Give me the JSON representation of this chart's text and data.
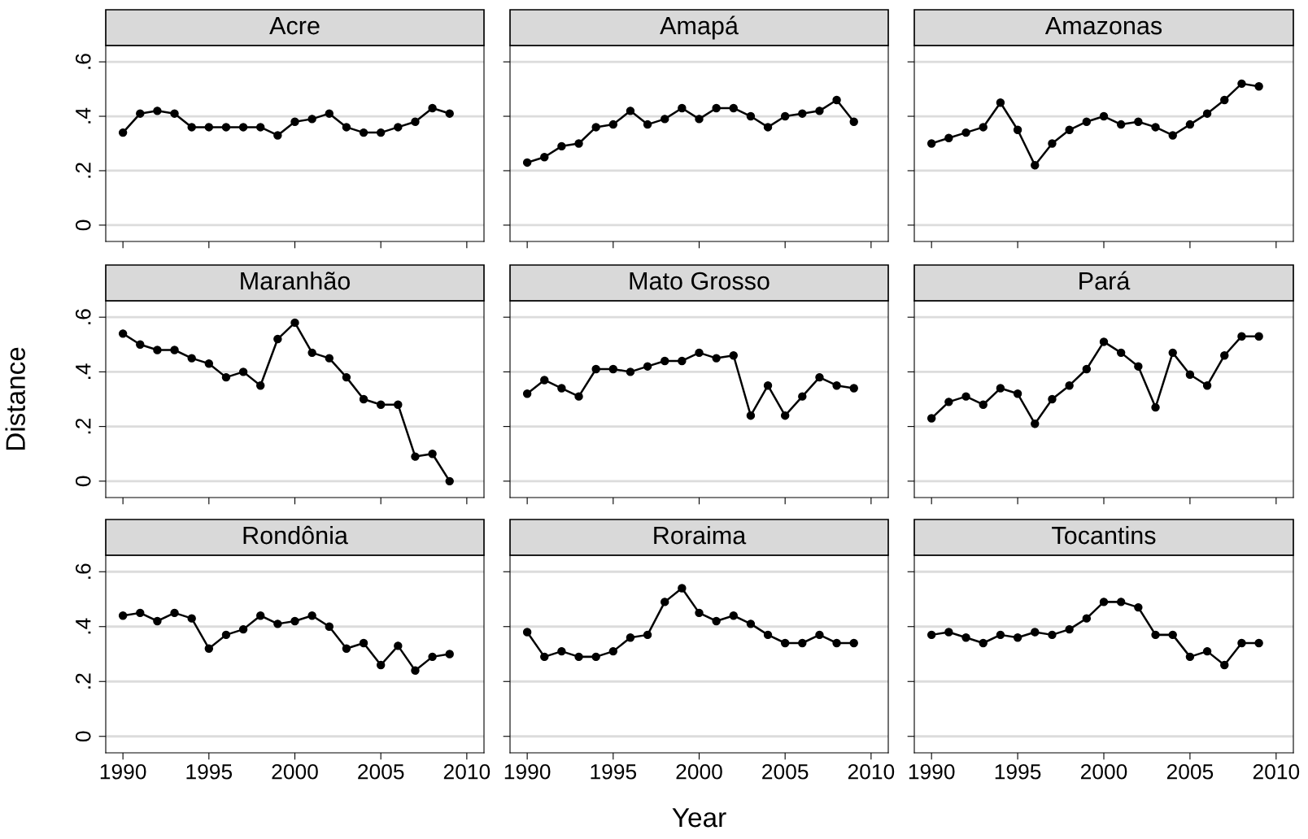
{
  "chart_data": [
    {
      "type": "line",
      "title": "Acre",
      "x": [
        1990,
        1991,
        1992,
        1993,
        1994,
        1995,
        1996,
        1997,
        1998,
        1999,
        2000,
        2001,
        2002,
        2003,
        2004,
        2005,
        2006,
        2007,
        2008,
        2009
      ],
      "values": [
        0.34,
        0.41,
        0.42,
        0.41,
        0.36,
        0.36,
        0.36,
        0.36,
        0.36,
        0.33,
        0.38,
        0.39,
        0.41,
        0.36,
        0.34,
        0.34,
        0.36,
        0.38,
        0.43,
        0.41
      ],
      "color": "#000000",
      "marker": "circle",
      "xlim": [
        1989,
        2011
      ],
      "ylim": [
        -0.06,
        0.66
      ],
      "xticks": [
        {
          "value": 1990,
          "label": null
        },
        {
          "value": 1995,
          "label": null
        },
        {
          "value": 2000,
          "label": null
        },
        {
          "value": 2005,
          "label": null
        },
        {
          "value": 2010,
          "label": null
        }
      ],
      "yticks": [
        {
          "value": 0,
          "label": "0"
        },
        {
          "value": 0.2,
          "label": ".2"
        },
        {
          "value": 0.4,
          "label": ".4"
        },
        {
          "value": 0.6,
          "label": ".6"
        }
      ],
      "grid": "y",
      "tick_labels": "y"
    },
    {
      "type": "line",
      "title": "Amapá",
      "x": [
        1990,
        1991,
        1992,
        1993,
        1994,
        1995,
        1996,
        1997,
        1998,
        1999,
        2000,
        2001,
        2002,
        2003,
        2004,
        2005,
        2006,
        2007,
        2008,
        2009
      ],
      "values": [
        0.23,
        0.25,
        0.29,
        0.3,
        0.36,
        0.37,
        0.42,
        0.37,
        0.39,
        0.43,
        0.39,
        0.43,
        0.43,
        0.4,
        0.36,
        0.4,
        0.41,
        0.42,
        0.46,
        0.38
      ],
      "color": "#000000",
      "marker": "circle",
      "xlim": [
        1989,
        2011
      ],
      "ylim": [
        -0.06,
        0.66
      ],
      "xticks": [
        {
          "value": 1990,
          "label": null
        },
        {
          "value": 1995,
          "label": null
        },
        {
          "value": 2000,
          "label": null
        },
        {
          "value": 2005,
          "label": null
        },
        {
          "value": 2010,
          "label": null
        }
      ],
      "yticks": [
        {
          "value": 0,
          "label": null
        },
        {
          "value": 0.2,
          "label": null
        },
        {
          "value": 0.4,
          "label": null
        },
        {
          "value": 0.6,
          "label": null
        }
      ],
      "grid": "y",
      "tick_labels": false
    },
    {
      "type": "line",
      "title": "Amazonas",
      "x": [
        1990,
        1991,
        1992,
        1993,
        1994,
        1995,
        1996,
        1997,
        1998,
        1999,
        2000,
        2001,
        2002,
        2003,
        2004,
        2005,
        2006,
        2007,
        2008,
        2009
      ],
      "values": [
        0.3,
        0.32,
        0.34,
        0.36,
        0.45,
        0.35,
        0.22,
        0.3,
        0.35,
        0.38,
        0.4,
        0.37,
        0.38,
        0.36,
        0.33,
        0.37,
        0.41,
        0.46,
        0.52,
        0.51
      ],
      "color": "#000000",
      "marker": "circle",
      "xlim": [
        1989,
        2011
      ],
      "ylim": [
        -0.06,
        0.66
      ],
      "xticks": [
        {
          "value": 1990,
          "label": null
        },
        {
          "value": 1995,
          "label": null
        },
        {
          "value": 2000,
          "label": null
        },
        {
          "value": 2005,
          "label": null
        },
        {
          "value": 2010,
          "label": null
        }
      ],
      "yticks": [
        {
          "value": 0,
          "label": null
        },
        {
          "value": 0.2,
          "label": null
        },
        {
          "value": 0.4,
          "label": null
        },
        {
          "value": 0.6,
          "label": null
        }
      ],
      "grid": "y",
      "tick_labels": false
    },
    {
      "type": "line",
      "title": "Maranhão",
      "ylabel": "Distance",
      "x": [
        1990,
        1991,
        1992,
        1993,
        1994,
        1995,
        1996,
        1997,
        1998,
        1999,
        2000,
        2001,
        2002,
        2003,
        2004,
        2005,
        2006,
        2007,
        2008,
        2009
      ],
      "values": [
        0.54,
        0.5,
        0.48,
        0.48,
        0.45,
        0.43,
        0.38,
        0.4,
        0.35,
        0.52,
        0.58,
        0.47,
        0.45,
        0.38,
        0.3,
        0.28,
        0.28,
        0.09,
        0.1,
        0.0
      ],
      "color": "#000000",
      "marker": "circle",
      "xlim": [
        1989,
        2011
      ],
      "ylim": [
        -0.06,
        0.66
      ],
      "xticks": [
        {
          "value": 1990,
          "label": null
        },
        {
          "value": 1995,
          "label": null
        },
        {
          "value": 2000,
          "label": null
        },
        {
          "value": 2005,
          "label": null
        },
        {
          "value": 2010,
          "label": null
        }
      ],
      "yticks": [
        {
          "value": 0,
          "label": "0"
        },
        {
          "value": 0.2,
          "label": ".2"
        },
        {
          "value": 0.4,
          "label": ".4"
        },
        {
          "value": 0.6,
          "label": ".6"
        }
      ],
      "grid": "y",
      "tick_labels": "y"
    },
    {
      "type": "line",
      "title": "Mato Grosso",
      "x": [
        1990,
        1991,
        1992,
        1993,
        1994,
        1995,
        1996,
        1997,
        1998,
        1999,
        2000,
        2001,
        2002,
        2003,
        2004,
        2005,
        2006,
        2007,
        2008,
        2009
      ],
      "values": [
        0.32,
        0.37,
        0.34,
        0.31,
        0.41,
        0.41,
        0.4,
        0.42,
        0.44,
        0.44,
        0.47,
        0.45,
        0.46,
        0.24,
        0.35,
        0.24,
        0.31,
        0.38,
        0.35,
        0.34
      ],
      "color": "#000000",
      "marker": "circle",
      "xlim": [
        1989,
        2011
      ],
      "ylim": [
        -0.06,
        0.66
      ],
      "xticks": [
        {
          "value": 1990,
          "label": null
        },
        {
          "value": 1995,
          "label": null
        },
        {
          "value": 2000,
          "label": null
        },
        {
          "value": 2005,
          "label": null
        },
        {
          "value": 2010,
          "label": null
        }
      ],
      "yticks": [
        {
          "value": 0,
          "label": null
        },
        {
          "value": 0.2,
          "label": null
        },
        {
          "value": 0.4,
          "label": null
        },
        {
          "value": 0.6,
          "label": null
        }
      ],
      "grid": "y",
      "tick_labels": false
    },
    {
      "type": "line",
      "title": "Pará",
      "x": [
        1990,
        1991,
        1992,
        1993,
        1994,
        1995,
        1996,
        1997,
        1998,
        1999,
        2000,
        2001,
        2002,
        2003,
        2004,
        2005,
        2006,
        2007,
        2008,
        2009
      ],
      "values": [
        0.23,
        0.29,
        0.31,
        0.28,
        0.34,
        0.32,
        0.21,
        0.3,
        0.35,
        0.41,
        0.51,
        0.47,
        0.42,
        0.27,
        0.47,
        0.39,
        0.35,
        0.46,
        0.53,
        0.53
      ],
      "color": "#000000",
      "marker": "circle",
      "xlim": [
        1989,
        2011
      ],
      "ylim": [
        -0.06,
        0.66
      ],
      "xticks": [
        {
          "value": 1990,
          "label": null
        },
        {
          "value": 1995,
          "label": null
        },
        {
          "value": 2000,
          "label": null
        },
        {
          "value": 2005,
          "label": null
        },
        {
          "value": 2010,
          "label": null
        }
      ],
      "yticks": [
        {
          "value": 0,
          "label": null
        },
        {
          "value": 0.2,
          "label": null
        },
        {
          "value": 0.4,
          "label": null
        },
        {
          "value": 0.6,
          "label": null
        }
      ],
      "grid": "y",
      "tick_labels": false
    },
    {
      "type": "line",
      "title": "Rondônia",
      "x": [
        1990,
        1991,
        1992,
        1993,
        1994,
        1995,
        1996,
        1997,
        1998,
        1999,
        2000,
        2001,
        2002,
        2003,
        2004,
        2005,
        2006,
        2007,
        2008,
        2009
      ],
      "values": [
        0.44,
        0.45,
        0.42,
        0.45,
        0.43,
        0.32,
        0.37,
        0.39,
        0.44,
        0.41,
        0.42,
        0.44,
        0.4,
        0.32,
        0.34,
        0.26,
        0.33,
        0.24,
        0.29,
        0.3
      ],
      "color": "#000000",
      "marker": "circle",
      "xlim": [
        1989,
        2011
      ],
      "ylim": [
        -0.06,
        0.66
      ],
      "xticks": [
        1990,
        1995,
        2000,
        2005,
        2010
      ],
      "yticks": [
        {
          "value": 0,
          "label": "0"
        },
        {
          "value": 0.2,
          "label": ".2"
        },
        {
          "value": 0.4,
          "label": ".4"
        },
        {
          "value": 0.6,
          "label": ".6"
        }
      ],
      "grid": "y"
    },
    {
      "type": "line",
      "title": "Roraima",
      "xlabel": "Year",
      "x": [
        1990,
        1991,
        1992,
        1993,
        1994,
        1995,
        1996,
        1997,
        1998,
        1999,
        2000,
        2001,
        2002,
        2003,
        2004,
        2005,
        2006,
        2007,
        2008,
        2009
      ],
      "values": [
        0.38,
        0.29,
        0.31,
        0.29,
        0.29,
        0.31,
        0.36,
        0.37,
        0.49,
        0.54,
        0.45,
        0.42,
        0.44,
        0.41,
        0.37,
        0.34,
        0.34,
        0.37,
        0.34,
        0.34
      ],
      "color": "#000000",
      "marker": "circle",
      "xlim": [
        1989,
        2011
      ],
      "ylim": [
        -0.06,
        0.66
      ],
      "xticks": [
        1990,
        1995,
        2000,
        2005,
        2010
      ],
      "yticks": [
        {
          "value": 0,
          "label": null
        },
        {
          "value": 0.2,
          "label": null
        },
        {
          "value": 0.4,
          "label": null
        },
        {
          "value": 0.6,
          "label": null
        }
      ],
      "grid": "y",
      "tick_labels": "x"
    },
    {
      "type": "line",
      "title": "Tocantins",
      "x": [
        1990,
        1991,
        1992,
        1993,
        1994,
        1995,
        1996,
        1997,
        1998,
        1999,
        2000,
        2001,
        2002,
        2003,
        2004,
        2005,
        2006,
        2007,
        2008,
        2009
      ],
      "values": [
        0.37,
        0.38,
        0.36,
        0.34,
        0.37,
        0.36,
        0.38,
        0.37,
        0.39,
        0.43,
        0.49,
        0.49,
        0.47,
        0.37,
        0.37,
        0.29,
        0.31,
        0.26,
        0.34,
        0.34
      ],
      "color": "#000000",
      "marker": "circle",
      "xlim": [
        1989,
        2011
      ],
      "ylim": [
        -0.06,
        0.66
      ],
      "xticks": [
        1990,
        1995,
        2000,
        2005,
        2010
      ],
      "yticks": [
        {
          "value": 0,
          "label": null
        },
        {
          "value": 0.2,
          "label": null
        },
        {
          "value": 0.4,
          "label": null
        },
        {
          "value": 0.6,
          "label": null
        }
      ],
      "grid": "y",
      "tick_labels": "x"
    }
  ]
}
